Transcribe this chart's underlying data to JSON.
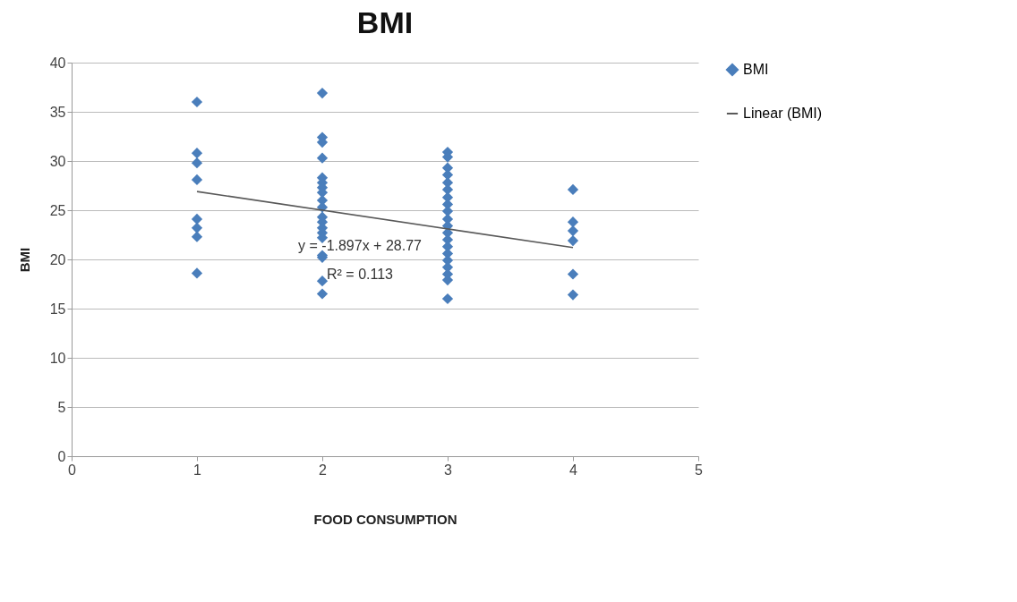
{
  "chart_data": {
    "type": "scatter",
    "title": "BMI",
    "xlabel": "FOOD CONSUMPTION",
    "ylabel": "BMI",
    "xlim": [
      0,
      5
    ],
    "xticks": [
      0,
      1,
      2,
      3,
      4,
      5
    ],
    "ylim": [
      0,
      40
    ],
    "yticks": [
      0,
      5,
      10,
      15,
      20,
      25,
      30,
      35,
      40
    ],
    "grid": "y",
    "legend": "right",
    "series": [
      {
        "name": "BMI",
        "marker": "diamond",
        "color": "#4a7ebb",
        "x": [
          1,
          1,
          1,
          1,
          1,
          1,
          1,
          1,
          2,
          2,
          2,
          2,
          2,
          2,
          2,
          2,
          2,
          2,
          2,
          2,
          2,
          2,
          2,
          2,
          2,
          2,
          2,
          3,
          3,
          3,
          3,
          3,
          3,
          3,
          3,
          3,
          3,
          3,
          3,
          3,
          3,
          3,
          3,
          3,
          3,
          3,
          3,
          4,
          4,
          4,
          4,
          4,
          4
        ],
        "values": [
          36,
          30.8,
          29.8,
          28.1,
          24.1,
          23.2,
          22.3,
          18.6,
          36.9,
          32.4,
          31.9,
          30.3,
          28.3,
          27.8,
          27.3,
          26.8,
          26,
          25.3,
          24.3,
          23.8,
          23.2,
          22.7,
          22.2,
          20.4,
          20.2,
          17.8,
          16.5,
          30.9,
          30.4,
          29.3,
          28.6,
          27.8,
          27.1,
          26.3,
          25.6,
          24.9,
          24.1,
          23.4,
          22.7,
          22,
          21.3,
          20.6,
          19.9,
          19.2,
          18.5,
          17.9,
          16,
          27.1,
          23.8,
          22.9,
          21.9,
          18.5,
          16.4
        ]
      },
      {
        "name": "Linear (BMI)",
        "type": "line",
        "color": "#595959",
        "x": [
          1,
          4
        ],
        "values": [
          26.9,
          21.2
        ]
      }
    ],
    "annotations": [
      "y = -1.897x + 28.77",
      "R² = 0.113"
    ]
  }
}
